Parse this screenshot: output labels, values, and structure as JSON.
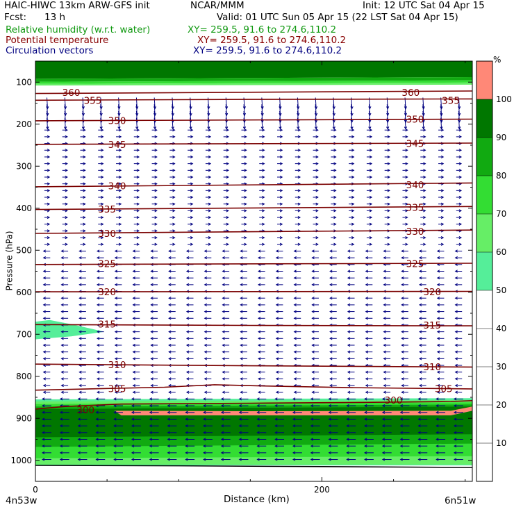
{
  "header": {
    "title": "HAIC-HIWC 13km ARW-GFS init",
    "org": "NCAR/MMM",
    "init": "Init: 12 UTC Sat 04 Apr 15",
    "fcst_label": "Fcst:",
    "fcst_value": "13 h",
    "valid": "Valid: 01 UTC Sun 05 Apr 15 (22 LST Sat 04 Apr 15)"
  },
  "fields": [
    {
      "name": "Relative humidity (w.r.t. water)",
      "xy": "XY= 259.5, 91.6 to 274.6,110.2",
      "color": "#119911"
    },
    {
      "name": "Potential temperature",
      "xy": "XY= 259.5, 91.6 to 274.6,110.2",
      "color": "#880000"
    },
    {
      "name": "Circulation vectors",
      "xy": "XY= 259.5, 91.6 to 274.6,110.2",
      "color": "#000080"
    }
  ],
  "chart_data": {
    "type": "heatmap",
    "title": "HAIC-HIWC 13km ARW-GFS init",
    "xlabel": "Distance (km)",
    "ylabel": "Pressure (hPa)",
    "x_ticks": [
      0,
      200
    ],
    "x_end_labels": {
      "left": "4n53w",
      "right": "6n51w"
    },
    "y_ticks": [
      100,
      200,
      300,
      400,
      500,
      600,
      700,
      800,
      900,
      1000
    ],
    "xlim": [
      0,
      305
    ],
    "ylim": [
      1050,
      50
    ],
    "colorbar": {
      "unit": "%",
      "ticks": [
        10,
        20,
        30,
        40,
        50,
        60,
        70,
        80,
        90,
        100
      ],
      "bins": [
        {
          "range": [
            0,
            50
          ],
          "color": "#ffffff"
        },
        {
          "range": [
            50,
            60
          ],
          "color": "#55ee99"
        },
        {
          "range": [
            60,
            70
          ],
          "color": "#66ee66"
        },
        {
          "range": [
            70,
            80
          ],
          "color": "#33dd33"
        },
        {
          "range": [
            80,
            90
          ],
          "color": "#11aa11"
        },
        {
          "range": [
            90,
            100
          ],
          "color": "#007700"
        },
        {
          "range": [
            100,
            110
          ],
          "color": "#ff8877"
        }
      ]
    },
    "isentropes": [
      {
        "theta": 300,
        "labels": [
          {
            "x": 35,
            "p": 880
          },
          {
            "x": 250,
            "p": 857
          }
        ],
        "points": [
          [
            0,
            878
          ],
          [
            20,
            872
          ],
          [
            60,
            866
          ],
          [
            150,
            864
          ],
          [
            230,
            862
          ],
          [
            290,
            860
          ],
          [
            305,
            858
          ]
        ]
      },
      {
        "theta": 305,
        "labels": [
          {
            "x": 57,
            "p": 829
          },
          {
            "x": 285,
            "p": 829
          }
        ],
        "points": [
          [
            0,
            833
          ],
          [
            50,
            829
          ],
          [
            90,
            826
          ],
          [
            125,
            820
          ],
          [
            160,
            823
          ],
          [
            220,
            827
          ],
          [
            305,
            830
          ]
        ]
      },
      {
        "theta": 310,
        "labels": [
          {
            "x": 57,
            "p": 772
          },
          {
            "x": 277,
            "p": 777
          }
        ],
        "points": [
          [
            0,
            771
          ],
          [
            150,
            775
          ],
          [
            305,
            778
          ]
        ]
      },
      {
        "theta": 315,
        "labels": [
          {
            "x": 50,
            "p": 676
          },
          {
            "x": 277,
            "p": 678
          }
        ],
        "points": [
          [
            0,
            677
          ],
          [
            150,
            679
          ],
          [
            305,
            680
          ]
        ]
      },
      {
        "theta": 320,
        "labels": [
          {
            "x": 50,
            "p": 599
          },
          {
            "x": 277,
            "p": 599
          }
        ],
        "points": [
          [
            0,
            599
          ],
          [
            305,
            598
          ]
        ]
      },
      {
        "theta": 325,
        "labels": [
          {
            "x": 50,
            "p": 532
          },
          {
            "x": 265,
            "p": 532
          }
        ],
        "points": [
          [
            0,
            534
          ],
          [
            305,
            531
          ]
        ]
      },
      {
        "theta": 330,
        "labels": [
          {
            "x": 50,
            "p": 460
          },
          {
            "x": 265,
            "p": 455
          }
        ],
        "points": [
          [
            0,
            460
          ],
          [
            305,
            452
          ]
        ]
      },
      {
        "theta": 335,
        "labels": [
          {
            "x": 50,
            "p": 402
          },
          {
            "x": 265,
            "p": 398
          }
        ],
        "points": [
          [
            0,
            403
          ],
          [
            305,
            396
          ]
        ]
      },
      {
        "theta": 340,
        "labels": [
          {
            "x": 57,
            "p": 347
          },
          {
            "x": 265,
            "p": 344
          }
        ],
        "points": [
          [
            0,
            349
          ],
          [
            305,
            340
          ]
        ]
      },
      {
        "theta": 345,
        "labels": [
          {
            "x": 57,
            "p": 248
          },
          {
            "x": 265,
            "p": 246
          }
        ],
        "points": [
          [
            0,
            248
          ],
          [
            305,
            245
          ]
        ]
      },
      {
        "theta": 350,
        "labels": [
          {
            "x": 57,
            "p": 191
          },
          {
            "x": 265,
            "p": 188
          }
        ],
        "points": [
          [
            0,
            192
          ],
          [
            305,
            188
          ]
        ]
      },
      {
        "theta": 355,
        "labels": [
          {
            "x": 40,
            "p": 143
          },
          {
            "x": 290,
            "p": 143
          }
        ],
        "points": [
          [
            0,
            143
          ],
          [
            150,
            141
          ],
          [
            305,
            140
          ]
        ]
      },
      {
        "theta": 360,
        "labels": [
          {
            "x": 25,
            "p": 124
          },
          {
            "x": 262,
            "p": 124
          }
        ],
        "points": [
          [
            0,
            127
          ],
          [
            305,
            121
          ]
        ]
      }
    ],
    "rh_regions": [
      {
        "rh_bin": "90-100",
        "points": [
          [
            0,
            50
          ],
          [
            305,
            50
          ],
          [
            305,
            88
          ],
          [
            0,
            92
          ]
        ]
      },
      {
        "rh_bin": "80-90",
        "points": [
          [
            0,
            92
          ],
          [
            305,
            88
          ],
          [
            305,
            96
          ],
          [
            0,
            99
          ]
        ]
      },
      {
        "rh_bin": "70-80",
        "points": [
          [
            0,
            99
          ],
          [
            305,
            96
          ],
          [
            305,
            101
          ],
          [
            0,
            104
          ]
        ]
      },
      {
        "rh_bin": "60-70",
        "points": [
          [
            0,
            104
          ],
          [
            305,
            101
          ],
          [
            305,
            106
          ],
          [
            0,
            108
          ]
        ]
      },
      {
        "rh_bin": "50-60",
        "points": [
          [
            0,
            670
          ],
          [
            10,
            666
          ],
          [
            25,
            676
          ],
          [
            48,
            694
          ],
          [
            25,
            705
          ],
          [
            0,
            712
          ]
        ]
      },
      {
        "rh_bin": "50-60",
        "points": [
          [
            0,
            855
          ],
          [
            305,
            852
          ],
          [
            305,
            1012
          ],
          [
            0,
            1012
          ]
        ]
      },
      {
        "rh_bin": "60-70",
        "points": [
          [
            0,
            860
          ],
          [
            305,
            857
          ],
          [
            305,
            1010
          ],
          [
            0,
            1010
          ]
        ]
      },
      {
        "rh_bin": "70-80",
        "points": [
          [
            0,
            866
          ],
          [
            305,
            862
          ],
          [
            305,
            990
          ],
          [
            0,
            995
          ]
        ]
      },
      {
        "rh_bin": "80-90",
        "points": [
          [
            0,
            872
          ],
          [
            305,
            867
          ],
          [
            305,
            960
          ],
          [
            0,
            968
          ]
        ]
      },
      {
        "rh_bin": "90-100",
        "points": [
          [
            0,
            878
          ],
          [
            305,
            872
          ],
          [
            305,
            938
          ],
          [
            0,
            945
          ]
        ]
      },
      {
        "rh_bin": "100-110",
        "points": [
          [
            55,
            882
          ],
          [
            150,
            883
          ],
          [
            290,
            882
          ],
          [
            305,
            872
          ],
          [
            305,
            882
          ],
          [
            290,
            893
          ],
          [
            60,
            893
          ]
        ]
      }
    ],
    "ground_pressure": [
      [
        0,
        1012
      ],
      [
        100,
        1013
      ],
      [
        200,
        1015
      ],
      [
        305,
        1017
      ]
    ],
    "wind_field": {
      "description": "circulation vectors, dark blue arrows",
      "regimes": [
        {
          "p_range": [
            100,
            200
          ],
          "direction": "downward",
          "relative_length": 1.0
        },
        {
          "p_range": [
            200,
            500
          ],
          "direction": "rightward",
          "relative_length": 0.45
        },
        {
          "p_range": [
            500,
            850
          ],
          "direction": "leftward",
          "relative_length": 0.6
        },
        {
          "p_range": [
            850,
            1012
          ],
          "direction": "leftward",
          "relative_length": 0.8
        }
      ]
    }
  }
}
